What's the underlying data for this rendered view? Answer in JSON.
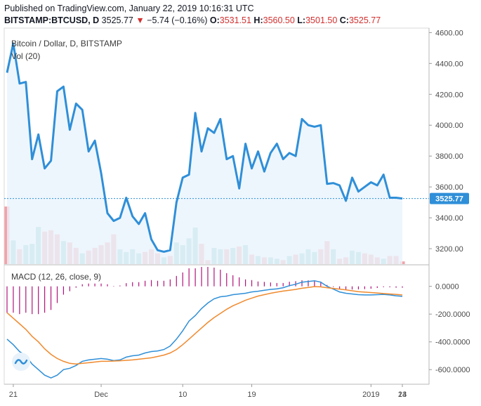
{
  "header": {
    "published": "Published on TradingView.com, January 22, 2019 10:16:31 UTC",
    "symbol": "BITSTAMP:BTCUSD, D",
    "last": "3525.77",
    "change_arrow": "▼",
    "change": "−5.74 (−0.16%)",
    "open_label": "O:",
    "open": "3531.51",
    "high_label": "H:",
    "high": "3560.50",
    "low_label": "L:",
    "low": "3501.50",
    "close_label": "C:",
    "close": "3525.77"
  },
  "colors": {
    "price_line": "#2f8fd8",
    "price_fill": "#eaf4fd",
    "vol_up": "#8fd3cb",
    "vol_down": "#f3a3a8",
    "macd_line": "#2f8fd8",
    "signal_line": "#f08a2e",
    "histogram": "#b0127a",
    "last_price_badge": "#2f8fd8"
  },
  "chart_data": {
    "type": "line",
    "title": "Bitcoin / Dollar, D, BITSTAMP",
    "volume_label": "Vol (20)",
    "macd_label": "MACD (12, 26, close, 9)",
    "x_ticks": [
      "21",
      "Dec",
      "10",
      "19",
      "2019",
      "14",
      "23"
    ],
    "price_axis": {
      "ticks": [
        "4600.00",
        "4400.00",
        "4200.00",
        "4000.00",
        "3800.00",
        "3600.00",
        "3400.00",
        "3200.00"
      ],
      "ylim": [
        3100,
        4620
      ]
    },
    "macd_axis": {
      "ticks": [
        "0.0000",
        "-200.0000",
        "-400.0000",
        "-600.0000"
      ],
      "ylim": [
        -700,
        150
      ]
    },
    "last_price_label": "3525.77",
    "close": [
      4340,
      4530,
      4270,
      4280,
      3780,
      3940,
      3720,
      3770,
      4220,
      4250,
      3970,
      4140,
      4100,
      3830,
      3900,
      3690,
      3430,
      3380,
      3400,
      3530,
      3410,
      3360,
      3430,
      3260,
      3190,
      3180,
      3190,
      3500,
      3660,
      3680,
      4080,
      3830,
      3980,
      3950,
      4040,
      3780,
      3800,
      3590,
      3880,
      3720,
      3830,
      3700,
      3820,
      3880,
      3780,
      3820,
      3800,
      4040,
      4000,
      3990,
      4000,
      3620,
      3625,
      3610,
      3510,
      3660,
      3570,
      3600,
      3630,
      3610,
      3680,
      3530,
      3530,
      3525
    ],
    "volume": [
      {
        "v": 85,
        "d": 1
      },
      {
        "v": 35,
        "d": 0
      },
      {
        "v": 22,
        "d": 1
      },
      {
        "v": 28,
        "d": 0
      },
      {
        "v": 30,
        "d": 0
      },
      {
        "v": 55,
        "d": 0
      },
      {
        "v": 48,
        "d": 1
      },
      {
        "v": 50,
        "d": 1
      },
      {
        "v": 44,
        "d": 1
      },
      {
        "v": 34,
        "d": 0
      },
      {
        "v": 32,
        "d": 1
      },
      {
        "v": 24,
        "d": 1
      },
      {
        "v": 16,
        "d": 0
      },
      {
        "v": 20,
        "d": 1
      },
      {
        "v": 24,
        "d": 1
      },
      {
        "v": 28,
        "d": 1
      },
      {
        "v": 32,
        "d": 1
      },
      {
        "v": 44,
        "d": 1
      },
      {
        "v": 22,
        "d": 0
      },
      {
        "v": 18,
        "d": 0
      },
      {
        "v": 22,
        "d": 0
      },
      {
        "v": 16,
        "d": 0
      },
      {
        "v": 18,
        "d": 1
      },
      {
        "v": 22,
        "d": 1
      },
      {
        "v": 16,
        "d": 1
      },
      {
        "v": 10,
        "d": 0
      },
      {
        "v": 12,
        "d": 1
      },
      {
        "v": 32,
        "d": 0
      },
      {
        "v": 28,
        "d": 0
      },
      {
        "v": 38,
        "d": 0
      },
      {
        "v": 54,
        "d": 0
      },
      {
        "v": 30,
        "d": 1
      },
      {
        "v": 6,
        "d": 1
      },
      {
        "v": 24,
        "d": 0
      },
      {
        "v": 22,
        "d": 0
      },
      {
        "v": 22,
        "d": 1
      },
      {
        "v": 24,
        "d": 0
      },
      {
        "v": 26,
        "d": 1
      },
      {
        "v": 28,
        "d": 0
      },
      {
        "v": 14,
        "d": 1
      },
      {
        "v": 12,
        "d": 0
      },
      {
        "v": 10,
        "d": 1
      },
      {
        "v": 10,
        "d": 0
      },
      {
        "v": 8,
        "d": 0
      },
      {
        "v": 6,
        "d": 1
      },
      {
        "v": 12,
        "d": 0
      },
      {
        "v": 14,
        "d": 1
      },
      {
        "v": 16,
        "d": 0
      },
      {
        "v": 22,
        "d": 0
      },
      {
        "v": 18,
        "d": 0
      },
      {
        "v": 22,
        "d": 1
      },
      {
        "v": 34,
        "d": 1
      },
      {
        "v": 22,
        "d": 0
      },
      {
        "v": 8,
        "d": 1
      },
      {
        "v": 10,
        "d": 1
      },
      {
        "v": 20,
        "d": 0
      },
      {
        "v": 18,
        "d": 0
      },
      {
        "v": 16,
        "d": 1
      },
      {
        "v": 14,
        "d": 1
      },
      {
        "v": 10,
        "d": 1
      },
      {
        "v": 8,
        "d": 0
      },
      {
        "v": 12,
        "d": 1
      },
      {
        "v": 12,
        "d": 1
      },
      {
        "v": 4,
        "d": 1
      }
    ],
    "macd": [
      -380,
      -420,
      -470,
      -500,
      -560,
      -600,
      -640,
      -660,
      -640,
      -600,
      -590,
      -570,
      -540,
      -530,
      -525,
      -520,
      -525,
      -535,
      -530,
      -510,
      -500,
      -495,
      -480,
      -470,
      -465,
      -455,
      -430,
      -380,
      -320,
      -250,
      -210,
      -160,
      -120,
      -90,
      -75,
      -70,
      -60,
      -55,
      -50,
      -40,
      -35,
      -28,
      -22,
      -18,
      -10,
      5,
      15,
      30,
      35,
      40,
      30,
      0,
      -20,
      -40,
      -50,
      -55,
      -60,
      -62,
      -62,
      -60,
      -58,
      -62,
      -68,
      -72
    ],
    "signal": [
      -190,
      -230,
      -270,
      -310,
      -360,
      -400,
      -450,
      -490,
      -520,
      -540,
      -555,
      -560,
      -555,
      -550,
      -545,
      -540,
      -540,
      -538,
      -536,
      -533,
      -530,
      -525,
      -520,
      -515,
      -505,
      -495,
      -480,
      -455,
      -420,
      -380,
      -340,
      -300,
      -260,
      -225,
      -195,
      -165,
      -140,
      -120,
      -100,
      -85,
      -70,
      -60,
      -50,
      -42,
      -34,
      -28,
      -22,
      -14,
      -8,
      -2,
      -4,
      -10,
      -15,
      -20,
      -25,
      -32,
      -38,
      -42,
      -45,
      -48,
      -52,
      -55,
      -58,
      -62
    ]
  }
}
